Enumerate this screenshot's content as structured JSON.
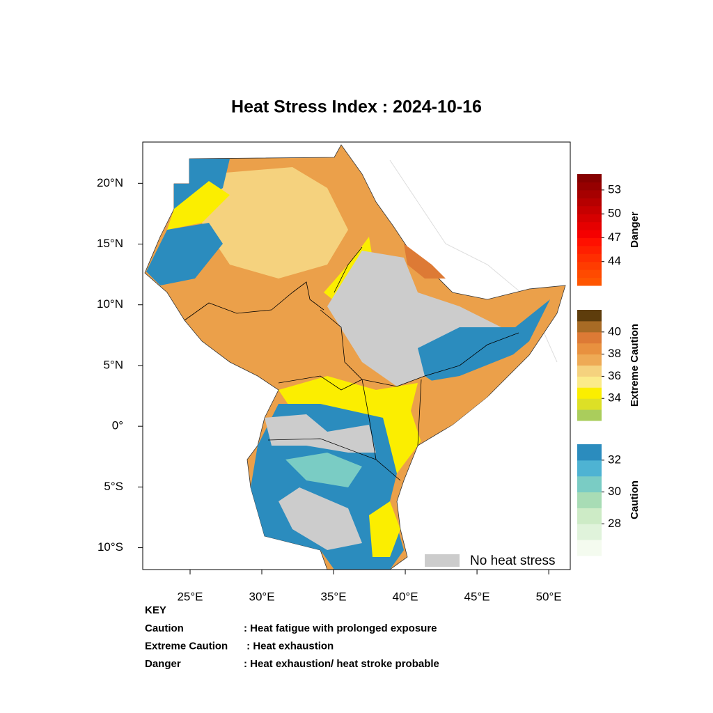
{
  "title": "Heat Stress Index : 2024-10-16",
  "map": {
    "xlim": [
      21.7,
      51.5
    ],
    "ylim": [
      -11.8,
      23.4
    ],
    "xticks": [
      {
        "value": 25,
        "label": "25°E"
      },
      {
        "value": 30,
        "label": "30°E"
      },
      {
        "value": 35,
        "label": "35°E"
      },
      {
        "value": 40,
        "label": "40°E"
      },
      {
        "value": 45,
        "label": "45°E"
      },
      {
        "value": 50,
        "label": "50°E"
      }
    ],
    "yticks": [
      {
        "value": 20,
        "label": "20°N"
      },
      {
        "value": 15,
        "label": "15°N"
      },
      {
        "value": 10,
        "label": "10°N"
      },
      {
        "value": 5,
        "label": "5°N"
      },
      {
        "value": 0,
        "label": "0°"
      },
      {
        "value": -5,
        "label": "5°S"
      },
      {
        "value": -10,
        "label": "10°S"
      }
    ]
  },
  "legend": {
    "no_heat_stress": "No heat stress",
    "no_heat_color": "#cccccc",
    "bars": [
      {
        "name": "Danger",
        "lim": [
          41,
          55
        ],
        "ticks": [
          44,
          47,
          50,
          53
        ],
        "colors": [
          "#ff5500",
          "#ff4a00",
          "#ff3c00",
          "#ff2e00",
          "#ff1f00",
          "#ff1000",
          "#f50000",
          "#e60000",
          "#d60000",
          "#c60000",
          "#b60000",
          "#a60000",
          "#960000",
          "#860000"
        ]
      },
      {
        "name": "Extreme Caution",
        "lim": [
          32,
          42
        ],
        "ticks": [
          34,
          36,
          38,
          40
        ],
        "colors": [
          "#aacd5c",
          "#dde026",
          "#fbee00",
          "#fbeb8a",
          "#f5d27e",
          "#eeaa55",
          "#e8913f",
          "#dd7a35",
          "#a86b25",
          "#5e3d0c"
        ]
      },
      {
        "name": "Caution",
        "lim": [
          26,
          33
        ],
        "ticks": [
          28,
          30,
          32
        ],
        "colors": [
          "#f4fbef",
          "#e0f3db",
          "#cdebc6",
          "#a8dcb5",
          "#7accc4",
          "#4eb3d3",
          "#2b8cbe"
        ]
      }
    ]
  },
  "key": {
    "heading": "KEY",
    "rows": [
      [
        "Caution",
        ": Heat fatigue with prolonged exposure"
      ],
      [
        "Extreme Caution",
        " : Heat exhaustion"
      ],
      [
        "Danger",
        ": Heat exhaustion/ heat stroke probable"
      ]
    ]
  }
}
